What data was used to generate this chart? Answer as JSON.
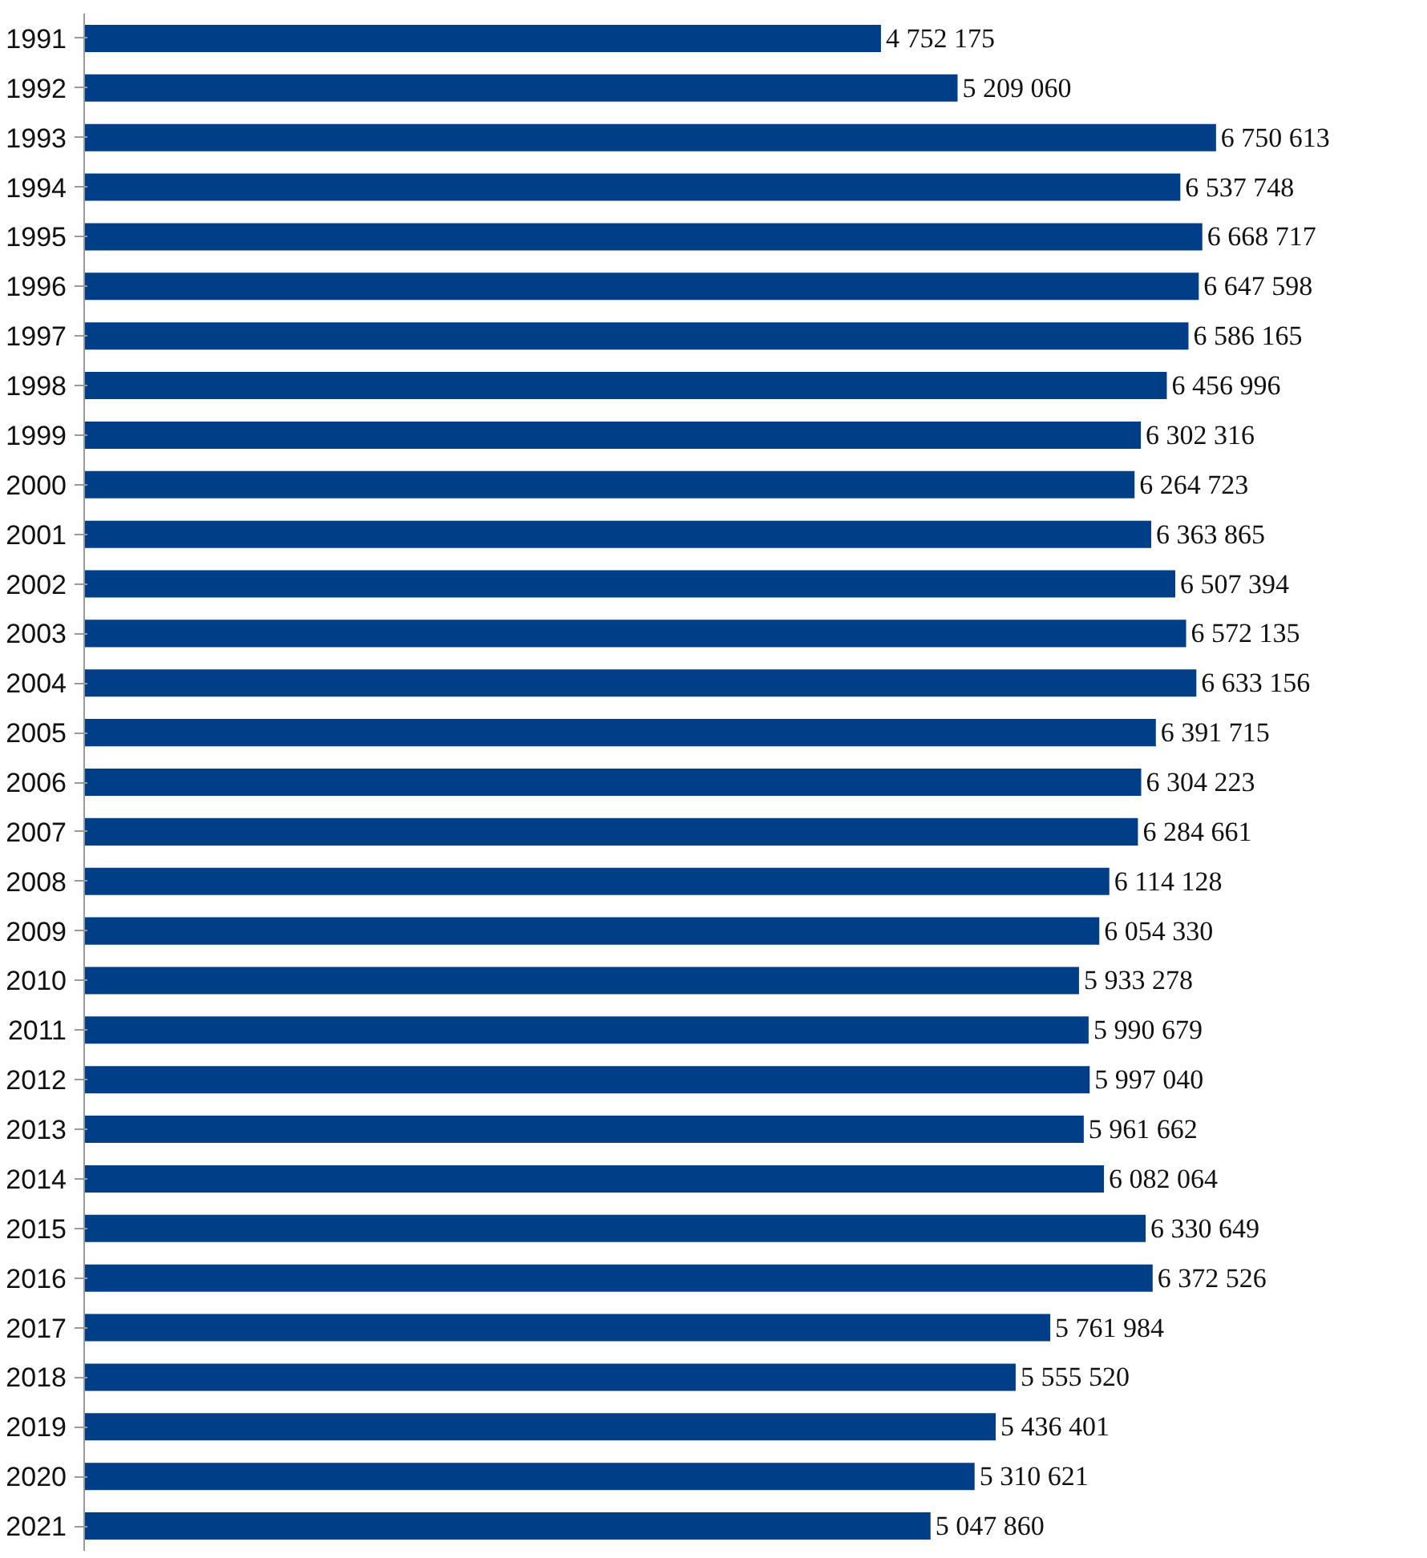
{
  "chart_data": {
    "type": "bar",
    "orientation": "horizontal",
    "color": "#003f87",
    "grid": false,
    "categories": [
      "1991",
      "1992",
      "1993",
      "1994",
      "1995",
      "1996",
      "1997",
      "1998",
      "1999",
      "2000",
      "2001",
      "2002",
      "2003",
      "2004",
      "2005",
      "2006",
      "2007",
      "2008",
      "2009",
      "2010",
      "2011",
      "2012",
      "2013",
      "2014",
      "2015",
      "2016",
      "2017",
      "2018",
      "2019",
      "2020",
      "2021"
    ],
    "values": [
      4752175,
      5209060,
      6750613,
      6537748,
      6668717,
      6647598,
      6586165,
      6456996,
      6302316,
      6264723,
      6363865,
      6507394,
      6572135,
      6633156,
      6391715,
      6304223,
      6284661,
      6114128,
      6054330,
      5933278,
      5990679,
      5997040,
      5961662,
      6082064,
      6330649,
      6372526,
      5761984,
      5555520,
      5436401,
      5310621,
      5047860
    ],
    "value_labels": [
      "4 752 175",
      "5 209 060",
      "6 750 613",
      "6 537 748",
      "6 668 717",
      "6 647 598",
      "6 586 165",
      "6 456 996",
      "6 302 316",
      "6 264 723",
      "6 363 865",
      "6 507 394",
      "6 572 135",
      "6 633 156",
      "6 391 715",
      "6 304 223",
      "6 284 661",
      "6 114 128",
      "6 054 330",
      "5 933 278",
      "5 990 679",
      "5 997 040",
      "5 961 662",
      "6 082 064",
      "6 330 649",
      "6 372 526",
      "5 761 984",
      "5 555 520",
      "5 436 401",
      "5 310 621",
      "5 047 860"
    ]
  }
}
